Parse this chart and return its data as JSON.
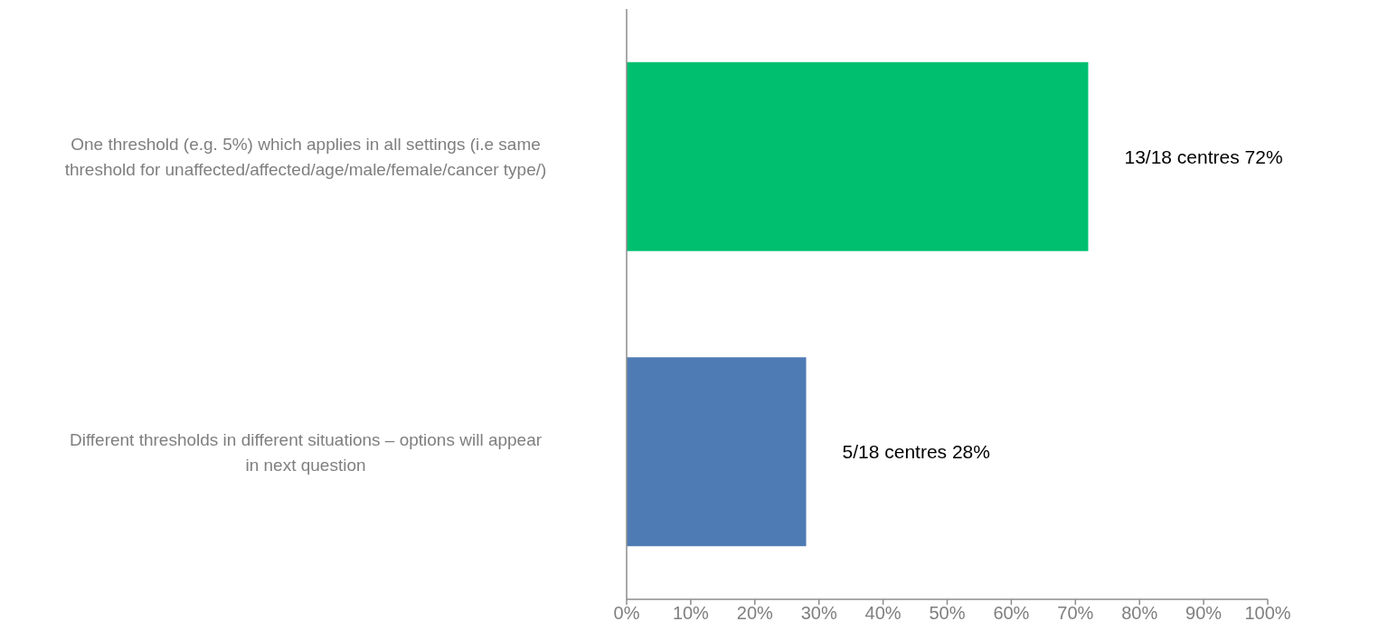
{
  "chart_data": {
    "type": "bar",
    "orientation": "horizontal",
    "categories": [
      "One threshold (e.g. 5%) which applies in all settings (i.e same threshold for unaffected/affected/age/male/female/cancer type/)",
      "Different thresholds in different situations – options will appear in next question"
    ],
    "values": [
      72,
      28
    ],
    "colors": [
      "#00bf6f",
      "#4f7bb4"
    ],
    "value_labels": [
      "13/18 centres 72%",
      "5/18 centres 28%"
    ],
    "xlim": [
      0,
      100
    ],
    "xticks": [
      {
        "value": 0,
        "label": "0%"
      },
      {
        "value": 10,
        "label": "10%"
      },
      {
        "value": 20,
        "label": "20%"
      },
      {
        "value": 30,
        "label": "30%"
      },
      {
        "value": 40,
        "label": "40%"
      },
      {
        "value": 50,
        "label": "50%"
      },
      {
        "value": 60,
        "label": "60%"
      },
      {
        "value": 70,
        "label": "70%"
      },
      {
        "value": 80,
        "label": "80%"
      },
      {
        "value": 90,
        "label": "90%"
      },
      {
        "value": 100,
        "label": "100%"
      }
    ]
  }
}
